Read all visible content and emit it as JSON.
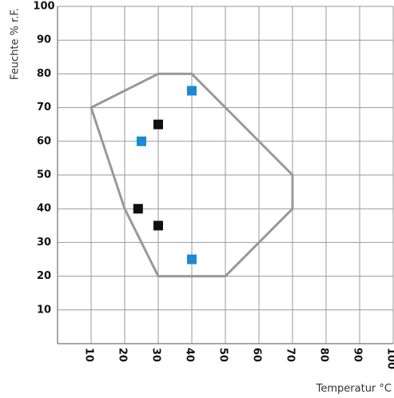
{
  "chart_data": {
    "type": "scatter",
    "xlabel": "Temperatur °C",
    "ylabel": "Feuchte % r.F.",
    "xlim": [
      0,
      100
    ],
    "ylim": [
      0,
      100
    ],
    "x_ticks": [
      "10",
      "20",
      "30",
      "40",
      "50",
      "60",
      "70",
      "80",
      "90",
      "100"
    ],
    "y_ticks": [
      "10",
      "20",
      "30",
      "40",
      "50",
      "60",
      "70",
      "80",
      "90",
      "100"
    ],
    "grid": true,
    "region": {
      "vertices": [
        [
          10,
          70
        ],
        [
          30,
          80
        ],
        [
          40,
          80
        ],
        [
          70,
          50
        ],
        [
          70,
          40
        ],
        [
          50,
          20
        ],
        [
          30,
          20
        ],
        [
          20,
          40
        ]
      ],
      "color": "#999999"
    },
    "series": [
      {
        "color": "#111111",
        "points": [
          [
            30,
            65
          ],
          [
            24,
            40
          ],
          [
            30,
            35
          ]
        ]
      },
      {
        "color": "#1a8ad4",
        "points": [
          [
            40,
            75
          ],
          [
            25,
            60
          ],
          [
            40,
            25
          ]
        ]
      }
    ]
  }
}
